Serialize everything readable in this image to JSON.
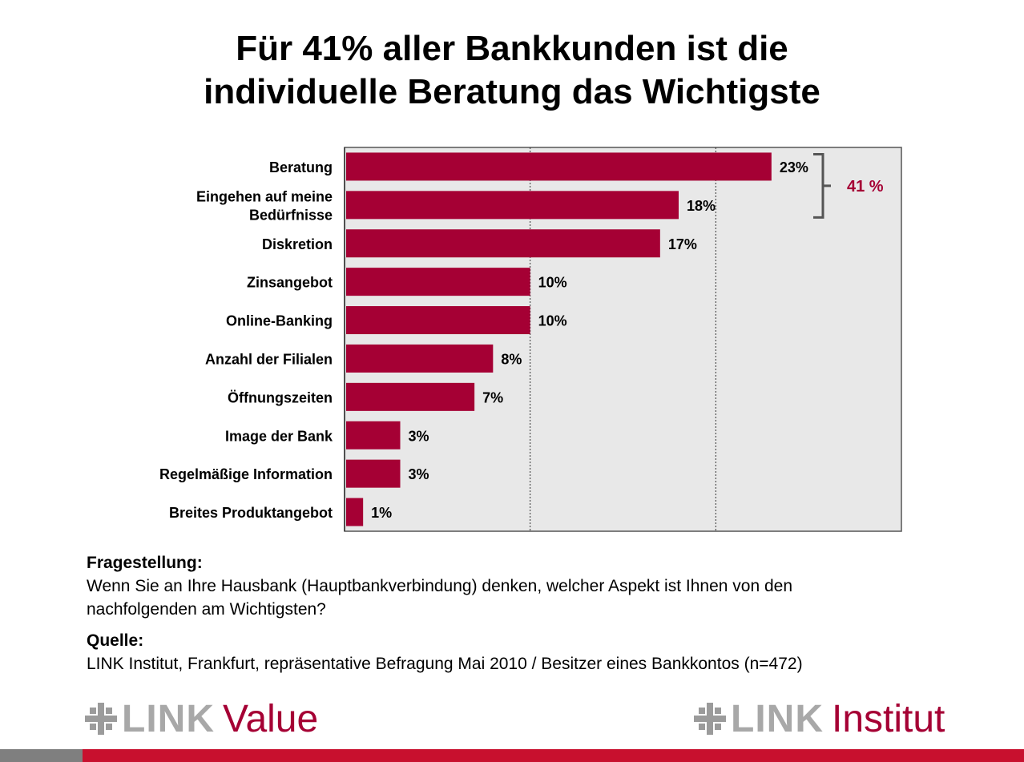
{
  "title_line1": "Für 41% aller Bankkunden ist die",
  "title_line2": "individuelle Beratung das Wichtigste",
  "chart_data": {
    "type": "bar",
    "orientation": "horizontal",
    "categories": [
      "Beratung",
      "Eingehen auf meine Bedürfnisse",
      "Diskretion",
      "Zinsangebot",
      "Online-Banking",
      "Anzahl der Filialen",
      "Öffnungszeiten",
      "Image der Bank",
      "Regelmäßige Information",
      "Breites Produktangebot"
    ],
    "category_lines": [
      [
        "Beratung"
      ],
      [
        "Eingehen auf meine",
        "Bedürfnisse"
      ],
      [
        "Diskretion"
      ],
      [
        "Zinsangebot"
      ],
      [
        "Online-Banking"
      ],
      [
        "Anzahl der Filialen"
      ],
      [
        "Öffnungszeiten"
      ],
      [
        "Image der Bank"
      ],
      [
        "Regelmäßige Information"
      ],
      [
        "Breites Produktangebot"
      ]
    ],
    "values": [
      23,
      18,
      17,
      10,
      10,
      8,
      7,
      3,
      3,
      1
    ],
    "value_labels": [
      "23%",
      "18%",
      "17%",
      "10%",
      "10%",
      "8%",
      "7%",
      "3%",
      "3%",
      "1%"
    ],
    "xlim": [
      0,
      30
    ],
    "gridlines": [
      10,
      20
    ],
    "bar_color": "#a50034",
    "plot_background": "#e8e8e8",
    "annotation": {
      "label": "41 %",
      "brackets": [
        "Beratung",
        "Eingehen auf meine Bedürfnisse"
      ],
      "color": "#a50034"
    }
  },
  "question": {
    "heading": "Fragestellung:",
    "text_line1": "Wenn Sie an Ihre Hausbank (Hauptbankverbindung) denken, welcher Aspekt ist Ihnen von den",
    "text_line2": "nachfolgenden am Wichtigsten?"
  },
  "source": {
    "heading": "Quelle:",
    "text": "LINK Institut, Frankfurt, repräsentative Befragung Mai 2010 / Besitzer eines Bankkontos (n=472)"
  },
  "logos": {
    "left_brand": "LINK",
    "left_sub": "Value",
    "right_brand": "LINK",
    "right_sub": "Institut",
    "mark_color": "#9b9b9b",
    "brand_color": "#a8a8a8",
    "sub_color": "#a50034"
  },
  "footer_colors": {
    "grey": "#7f7f7f",
    "red": "#c8102e"
  }
}
